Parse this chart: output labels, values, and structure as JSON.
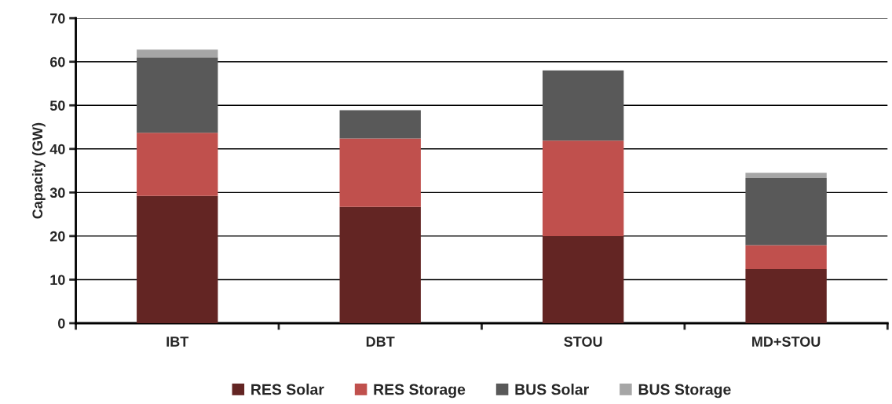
{
  "chart_data": {
    "type": "bar",
    "stacked": true,
    "ylabel": "Capacity (GW)",
    "categories": [
      "IBT",
      "DBT",
      "STOU",
      "MD+STOU"
    ],
    "series": [
      {
        "name": "RES Solar",
        "color": "#632523",
        "values": [
          29.2,
          26.7,
          20.0,
          12.4
        ]
      },
      {
        "name": "RES Storage",
        "color": "#c0504d",
        "values": [
          14.5,
          15.7,
          21.9,
          5.5
        ]
      },
      {
        "name": "BUS Solar",
        "color": "#595959",
        "values": [
          17.3,
          6.5,
          16.1,
          15.4
        ]
      },
      {
        "name": "BUS Storage",
        "color": "#a6a6a6",
        "values": [
          1.8,
          null,
          null,
          1.2
        ]
      }
    ],
    "ylim": [
      0,
      70
    ],
    "yticks": [
      0,
      10,
      20,
      30,
      40,
      50,
      60,
      70
    ],
    "grid": "y",
    "legend": "bottom"
  }
}
